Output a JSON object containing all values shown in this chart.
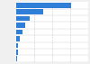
{
  "values": [
    220000,
    110000,
    55000,
    38000,
    25000,
    14000,
    8000,
    5500,
    3000
  ],
  "bar_color": "#2f7ed8",
  "background_color": "#f0f0f0",
  "plot_background": "#ffffff",
  "bar_height": 0.75,
  "figsize": [
    1.0,
    0.71
  ],
  "dpi": 100
}
